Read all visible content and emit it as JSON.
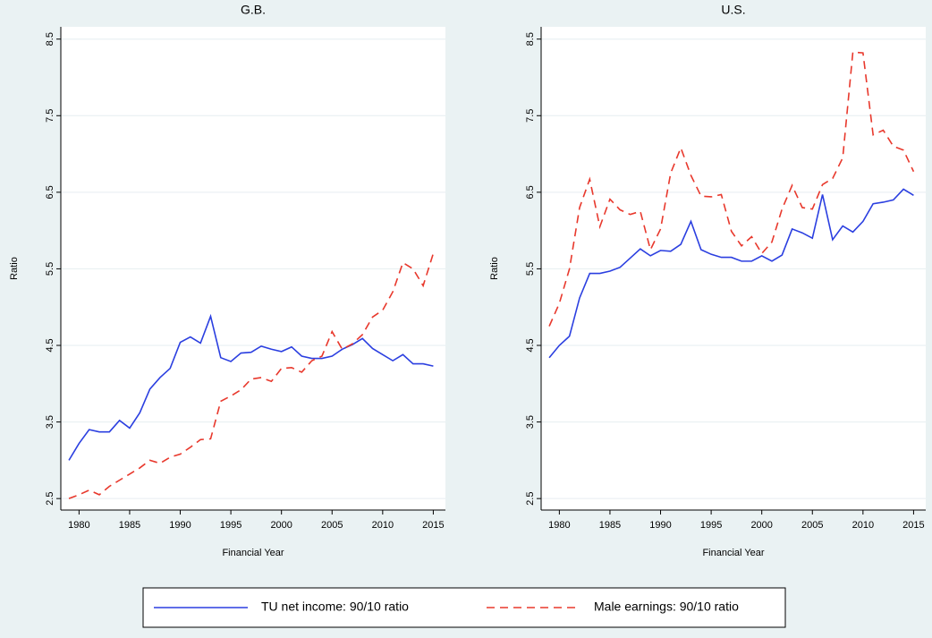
{
  "chart_data": [
    {
      "type": "line",
      "title": "G.B.",
      "x_label": "Financial Year",
      "y_label": "Ratio",
      "x": [
        1979,
        1980,
        1981,
        1982,
        1983,
        1984,
        1985,
        1986,
        1987,
        1988,
        1989,
        1990,
        1991,
        1992,
        1993,
        1994,
        1995,
        1996,
        1997,
        1998,
        1999,
        2000,
        2001,
        2002,
        2003,
        2004,
        2005,
        2006,
        2007,
        2008,
        2009,
        2010,
        2011,
        2012,
        2013,
        2014,
        2015
      ],
      "series": [
        {
          "name": "TU net income: 90/10 ratio",
          "color": "#2b3fe0",
          "style": "solid",
          "values": [
            3.0,
            3.22,
            3.4,
            3.37,
            3.37,
            3.52,
            3.42,
            3.62,
            3.93,
            4.08,
            4.2,
            4.54,
            4.61,
            4.53,
            4.88,
            4.34,
            4.29,
            4.4,
            4.41,
            4.49,
            4.45,
            4.42,
            4.48,
            4.36,
            4.33,
            4.33,
            4.36,
            4.45,
            4.51,
            4.59,
            4.46,
            4.38,
            4.3,
            4.38,
            4.26,
            4.26,
            4.23
          ]
        },
        {
          "name": "Male earnings: 90/10 ratio",
          "color": "#e8382c",
          "style": "dashed",
          "values": [
            2.5,
            2.55,
            2.61,
            2.55,
            2.66,
            2.74,
            2.82,
            2.9,
            3.0,
            2.96,
            3.04,
            3.08,
            3.17,
            3.27,
            3.28,
            3.77,
            3.84,
            3.92,
            4.06,
            4.08,
            4.03,
            4.2,
            4.21,
            4.15,
            4.3,
            4.36,
            4.68,
            4.45,
            4.52,
            4.64,
            4.87,
            4.96,
            5.2,
            5.58,
            5.5,
            5.28,
            5.7
          ]
        }
      ],
      "xlim": [
        1978.2,
        2016.2
      ],
      "xticks": [
        1980,
        1985,
        1990,
        1995,
        2000,
        2005,
        2010,
        2015
      ],
      "ylim": [
        2.35,
        8.66
      ],
      "yticks": [
        2.5,
        3.5,
        4.5,
        5.5,
        6.5,
        7.5,
        8.5
      ],
      "grid": true
    },
    {
      "type": "line",
      "title": "U.S.",
      "x_label": "Financial Year",
      "y_label": "Ratio",
      "x": [
        1979,
        1980,
        1981,
        1982,
        1983,
        1984,
        1985,
        1986,
        1987,
        1988,
        1989,
        1990,
        1991,
        1992,
        1993,
        1994,
        1995,
        1996,
        1997,
        1998,
        1999,
        2000,
        2001,
        2002,
        2003,
        2004,
        2005,
        2006,
        2007,
        2008,
        2009,
        2010,
        2011,
        2012,
        2013,
        2014,
        2015
      ],
      "series": [
        {
          "name": "TU net income: 90/10 ratio",
          "color": "#2b3fe0",
          "style": "solid",
          "values": [
            4.34,
            4.5,
            4.62,
            5.12,
            5.44,
            5.44,
            5.47,
            5.52,
            5.64,
            5.76,
            5.67,
            5.74,
            5.73,
            5.82,
            6.12,
            5.75,
            5.69,
            5.65,
            5.65,
            5.6,
            5.6,
            5.67,
            5.6,
            5.68,
            6.02,
            5.97,
            5.9,
            6.47,
            5.88,
            6.06,
            5.98,
            6.12,
            6.35,
            6.37,
            6.4,
            6.54,
            6.46
          ]
        },
        {
          "name": "Male earnings: 90/10 ratio",
          "color": "#e8382c",
          "style": "dashed",
          "values": [
            4.75,
            5.05,
            5.5,
            6.3,
            6.67,
            6.05,
            6.41,
            6.27,
            6.21,
            6.25,
            5.75,
            6.02,
            6.75,
            7.08,
            6.72,
            6.45,
            6.44,
            6.47,
            5.99,
            5.8,
            5.92,
            5.7,
            5.85,
            6.28,
            6.59,
            6.3,
            6.28,
            6.6,
            6.68,
            6.95,
            8.33,
            8.32,
            7.25,
            7.31,
            7.1,
            7.05,
            6.77
          ]
        }
      ],
      "xlim": [
        1978.2,
        2016.2
      ],
      "xticks": [
        1980,
        1985,
        1990,
        1995,
        2000,
        2005,
        2010,
        2015
      ],
      "ylim": [
        2.35,
        8.66
      ],
      "yticks": [
        2.5,
        3.5,
        4.5,
        5.5,
        6.5,
        7.5,
        8.5
      ],
      "grid": true
    }
  ]
}
